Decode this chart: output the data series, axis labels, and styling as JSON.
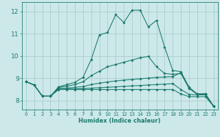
{
  "bg_color": "#cce8e8",
  "grid_color": "#aacccc",
  "line_color": "#1a7a6e",
  "xlabel": "Humidex (Indice chaleur)",
  "xlim": [
    -0.5,
    23.5
  ],
  "ylim": [
    7.6,
    12.4
  ],
  "yticks": [
    8,
    9,
    10,
    11,
    12
  ],
  "xticks": [
    0,
    1,
    2,
    3,
    4,
    5,
    6,
    7,
    8,
    9,
    10,
    11,
    12,
    13,
    14,
    15,
    16,
    17,
    18,
    19,
    20,
    21,
    22,
    23
  ],
  "lines": [
    {
      "x": [
        0,
        1,
        2,
        3,
        4,
        5,
        6,
        7,
        8,
        9,
        10,
        11,
        12,
        13,
        14,
        15,
        16,
        17,
        18,
        19,
        20,
        21,
        22,
        23
      ],
      "y": [
        8.85,
        8.7,
        8.2,
        8.2,
        8.62,
        8.72,
        8.82,
        9.05,
        9.85,
        10.95,
        11.05,
        11.85,
        11.5,
        12.05,
        12.05,
        11.3,
        11.6,
        10.4,
        9.35,
        9.3,
        8.6,
        8.3,
        8.3,
        7.75
      ]
    },
    {
      "x": [
        0,
        1,
        2,
        3,
        4,
        5,
        6,
        7,
        8,
        9,
        10,
        11,
        12,
        13,
        14,
        15,
        16,
        17,
        18,
        19,
        20,
        21,
        22,
        23
      ],
      "y": [
        8.85,
        8.7,
        8.2,
        8.2,
        8.6,
        8.65,
        8.72,
        8.85,
        9.12,
        9.32,
        9.52,
        9.62,
        9.72,
        9.82,
        9.92,
        9.98,
        9.52,
        9.22,
        9.18,
        9.22,
        8.55,
        8.3,
        8.3,
        7.75
      ]
    },
    {
      "x": [
        0,
        1,
        2,
        3,
        4,
        5,
        6,
        7,
        8,
        9,
        10,
        11,
        12,
        13,
        14,
        15,
        16,
        17,
        18,
        19,
        20,
        21,
        22,
        23
      ],
      "y": [
        8.85,
        8.7,
        8.2,
        8.2,
        8.55,
        8.56,
        8.6,
        8.63,
        8.72,
        8.78,
        8.84,
        8.88,
        8.92,
        8.95,
        8.98,
        9.01,
        9.04,
        9.06,
        9.08,
        9.25,
        8.55,
        8.28,
        8.3,
        7.75
      ]
    },
    {
      "x": [
        0,
        1,
        2,
        3,
        4,
        5,
        6,
        7,
        8,
        9,
        10,
        11,
        12,
        13,
        14,
        15,
        16,
        17,
        18,
        19,
        20,
        21,
        22,
        23
      ],
      "y": [
        8.85,
        8.7,
        8.2,
        8.2,
        8.52,
        8.52,
        8.53,
        8.54,
        8.56,
        8.58,
        8.6,
        8.62,
        8.64,
        8.66,
        8.68,
        8.7,
        8.72,
        8.74,
        8.76,
        8.5,
        8.28,
        8.26,
        8.26,
        7.75
      ]
    },
    {
      "x": [
        0,
        1,
        2,
        3,
        4,
        5,
        6,
        7,
        8,
        9,
        10,
        11,
        12,
        13,
        14,
        15,
        16,
        17,
        18,
        19,
        20,
        21,
        22,
        23
      ],
      "y": [
        8.85,
        8.7,
        8.2,
        8.2,
        8.5,
        8.5,
        8.5,
        8.5,
        8.5,
        8.5,
        8.5,
        8.5,
        8.5,
        8.5,
        8.5,
        8.5,
        8.5,
        8.5,
        8.5,
        8.3,
        8.18,
        8.18,
        8.18,
        7.75
      ]
    }
  ]
}
